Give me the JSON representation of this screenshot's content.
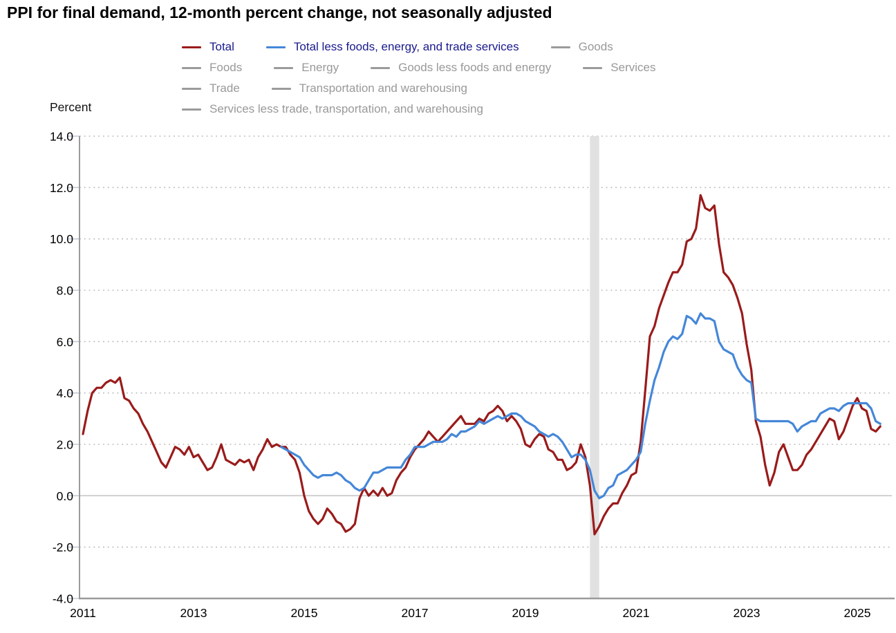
{
  "page": {
    "title": "PPI for final demand, 12-month percent change, not seasonally adjusted",
    "y_axis_title": "Percent"
  },
  "colors": {
    "total_line": "#9a1b1b",
    "core_line": "#4587d8",
    "active_legend_text": "#1a1a8c",
    "inactive_legend": "#999999",
    "grid_dotted": "#b8b8b8",
    "zero_line": "#c6c6c6",
    "axis_line": "#9a9a9a",
    "recession_band": "#e1e1e1",
    "tick_mark": "#c3cbd6"
  },
  "legend": {
    "rows": [
      [
        {
          "label": "Total",
          "swatch": "#9a1b1b",
          "text": "#1a1a8c",
          "active": true
        },
        {
          "label": "Total less foods, energy, and trade services",
          "swatch": "#4587d8",
          "text": "#1a1a8c",
          "active": true
        },
        {
          "label": "Goods",
          "swatch": "#9b9b9b",
          "text": "#999999",
          "active": false
        }
      ],
      [
        {
          "label": "Foods",
          "swatch": "#9b9b9b",
          "text": "#999999",
          "active": false
        },
        {
          "label": "Energy",
          "swatch": "#9b9b9b",
          "text": "#999999",
          "active": false
        },
        {
          "label": "Goods less foods and energy",
          "swatch": "#9b9b9b",
          "text": "#999999",
          "active": false
        },
        {
          "label": "Services",
          "swatch": "#9b9b9b",
          "text": "#999999",
          "active": false
        }
      ],
      [
        {
          "label": "Trade",
          "swatch": "#9b9b9b",
          "text": "#999999",
          "active": false
        },
        {
          "label": "Transportation and warehousing",
          "swatch": "#9b9b9b",
          "text": "#999999",
          "active": false
        }
      ],
      [
        {
          "label": "Services less trade, transportation, and warehousing",
          "swatch": "#9b9b9b",
          "text": "#999999",
          "active": false
        }
      ]
    ]
  },
  "chart_data": {
    "type": "line",
    "title": "PPI for final demand, 12-month percent change, not seasonally adjusted",
    "ylabel": "Percent",
    "ylim": [
      -4.0,
      14.0
    ],
    "ytick_step": 2.0,
    "ytick_labels": [
      "14.0",
      "12.0",
      "10.0",
      "8.0",
      "6.0",
      "4.0",
      "2.0",
      "0.0",
      "-2.0",
      "-4.0"
    ],
    "xtick_labels": [
      "2011",
      "2013",
      "2015",
      "2017",
      "2019",
      "2021",
      "2023",
      "2025"
    ],
    "x_start": "2011-01",
    "x_end": "2025-06",
    "grid": "dotted horizontal lines at every 2 units, solid line at 0",
    "legend_position": "top",
    "recession_band": {
      "start": "2020-03",
      "end": "2020-05"
    },
    "series": [
      {
        "name": "Total",
        "color": "#9a1b1b",
        "values": [
          2.4,
          3.3,
          4.0,
          4.2,
          4.2,
          4.4,
          4.5,
          4.4,
          4.6,
          3.8,
          3.7,
          3.4,
          3.2,
          2.8,
          2.5,
          2.1,
          1.7,
          1.3,
          1.1,
          1.5,
          1.9,
          1.8,
          1.6,
          1.9,
          1.5,
          1.6,
          1.3,
          1.0,
          1.1,
          1.5,
          2.0,
          1.4,
          1.3,
          1.2,
          1.4,
          1.3,
          1.4,
          1.0,
          1.5,
          1.8,
          2.2,
          1.9,
          2.0,
          1.9,
          1.9,
          1.6,
          1.4,
          0.9,
          0.0,
          -0.6,
          -0.9,
          -1.1,
          -0.9,
          -0.5,
          -0.7,
          -1.0,
          -1.1,
          -1.4,
          -1.3,
          -1.1,
          -0.1,
          0.3,
          0.0,
          0.2,
          0.0,
          0.3,
          0.0,
          0.1,
          0.6,
          0.9,
          1.1,
          1.5,
          1.8,
          2.0,
          2.2,
          2.5,
          2.3,
          2.1,
          2.3,
          2.5,
          2.7,
          2.9,
          3.1,
          2.8,
          2.8,
          2.8,
          3.0,
          2.9,
          3.2,
          3.3,
          3.5,
          3.3,
          2.9,
          3.1,
          2.9,
          2.6,
          2.0,
          1.9,
          2.2,
          2.4,
          2.3,
          1.8,
          1.7,
          1.4,
          1.4,
          1.0,
          1.1,
          1.3,
          2.0,
          1.5,
          0.4,
          -1.5,
          -1.2,
          -0.8,
          -0.5,
          -0.3,
          -0.3,
          0.1,
          0.4,
          0.8,
          0.9,
          2.1,
          4.1,
          6.2,
          6.6,
          7.3,
          7.8,
          8.3,
          8.7,
          8.7,
          9.0,
          9.9,
          10.0,
          10.4,
          11.7,
          11.2,
          11.1,
          11.3,
          9.8,
          8.7,
          8.5,
          8.2,
          7.7,
          7.1,
          5.9,
          4.9,
          2.9,
          2.3,
          1.2,
          0.4,
          0.9,
          1.7,
          2.0,
          1.5,
          1.0,
          1.0,
          1.2,
          1.6,
          1.8,
          2.1,
          2.4,
          2.7,
          3.0,
          2.9,
          2.2,
          2.5,
          3.0,
          3.5,
          3.8,
          3.4,
          3.3,
          2.6,
          2.5,
          2.7
        ]
      },
      {
        "name": "Total less foods, energy, and trade services",
        "color": "#4587d8",
        "values": [
          null,
          null,
          null,
          null,
          null,
          null,
          null,
          null,
          null,
          null,
          null,
          null,
          null,
          null,
          null,
          null,
          null,
          null,
          null,
          null,
          null,
          null,
          null,
          null,
          null,
          null,
          null,
          null,
          null,
          null,
          null,
          null,
          null,
          null,
          null,
          null,
          null,
          null,
          null,
          null,
          null,
          null,
          null,
          1.9,
          1.8,
          1.7,
          1.6,
          1.5,
          1.2,
          1.0,
          0.8,
          0.7,
          0.8,
          0.8,
          0.8,
          0.9,
          0.8,
          0.6,
          0.5,
          0.3,
          0.2,
          0.3,
          0.6,
          0.9,
          0.9,
          1.0,
          1.1,
          1.1,
          1.1,
          1.1,
          1.4,
          1.6,
          1.9,
          1.9,
          1.9,
          2.0,
          2.1,
          2.1,
          2.1,
          2.2,
          2.4,
          2.3,
          2.5,
          2.5,
          2.6,
          2.7,
          2.9,
          2.8,
          2.9,
          3.0,
          3.1,
          3.0,
          3.1,
          3.2,
          3.2,
          3.1,
          2.9,
          2.8,
          2.7,
          2.5,
          2.4,
          2.3,
          2.4,
          2.3,
          2.1,
          1.8,
          1.5,
          1.6,
          1.6,
          1.4,
          1.0,
          0.2,
          -0.1,
          0.0,
          0.3,
          0.4,
          0.8,
          0.9,
          1.0,
          1.2,
          1.4,
          1.7,
          2.8,
          3.7,
          4.5,
          5.0,
          5.6,
          6.0,
          6.2,
          6.1,
          6.3,
          7.0,
          6.9,
          6.7,
          7.1,
          6.9,
          6.9,
          6.8,
          6.0,
          5.7,
          5.6,
          5.5,
          5.0,
          4.7,
          4.5,
          4.4,
          3.0,
          2.9,
          2.9,
          2.9,
          2.9,
          2.9,
          2.9,
          2.9,
          2.8,
          2.5,
          2.7,
          2.8,
          2.9,
          2.9,
          3.2,
          3.3,
          3.4,
          3.4,
          3.3,
          3.5,
          3.6,
          3.6,
          3.6,
          3.6,
          3.6,
          3.4,
          2.9,
          2.8
        ]
      }
    ],
    "inactive_legend_series": [
      "Goods",
      "Foods",
      "Energy",
      "Goods less foods and energy",
      "Services",
      "Trade",
      "Transportation and warehousing",
      "Services less trade, transportation, and warehousing"
    ]
  }
}
